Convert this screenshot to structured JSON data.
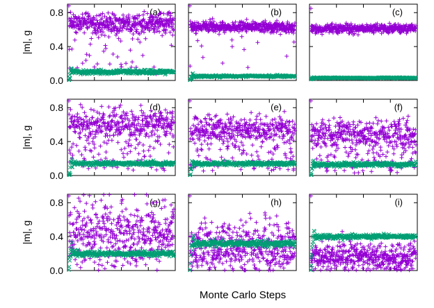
{
  "chart_data": {
    "type": "scatter",
    "xlabel": "Monte Carlo Steps",
    "ylabel": "|m|, g",
    "ylim": [
      0,
      0.9
    ],
    "yticks": [
      "0.0",
      "0.4",
      "0.8"
    ],
    "ytick_values": [
      0,
      0.4,
      0.8
    ],
    "grid": false,
    "colors": {
      "m": "#9400d3",
      "g": "#009e73"
    },
    "markers": {
      "m": "plus",
      "g": "cross"
    },
    "panels": [
      {
        "label": "(a)",
        "series": [
          {
            "key": "m",
            "mean": 0.67,
            "spread": 0.06,
            "outlier_rate": 0.14,
            "outlier_min": 0.05,
            "first": 0.88
          },
          {
            "key": "g",
            "mean": 0.1,
            "spread": 0.012,
            "first": 0.0
          }
        ]
      },
      {
        "label": "(b)",
        "series": [
          {
            "key": "m",
            "mean": 0.63,
            "spread": 0.03,
            "outlier_rate": 0.04,
            "outlier_min": 0.15,
            "first": 0.88
          },
          {
            "key": "g",
            "mean": 0.05,
            "spread": 0.006,
            "first": 0.0
          }
        ]
      },
      {
        "label": "(c)",
        "series": [
          {
            "key": "m",
            "mean": 0.61,
            "spread": 0.025,
            "outlier_rate": 0.0,
            "outlier_min": 0.5,
            "first": 0.85
          },
          {
            "key": "g",
            "mean": 0.03,
            "spread": 0.004,
            "first": 0.0
          }
        ]
      },
      {
        "label": "(d)",
        "series": [
          {
            "key": "m",
            "mean": 0.62,
            "spread": 0.08,
            "outlier_rate": 0.28,
            "outlier_min": 0.05,
            "first": 0.88
          },
          {
            "key": "g",
            "mean": 0.14,
            "spread": 0.012,
            "first": 0.0
          }
        ]
      },
      {
        "label": "(e)",
        "series": [
          {
            "key": "m",
            "mean": 0.55,
            "spread": 0.08,
            "outlier_rate": 0.3,
            "outlier_min": 0.05,
            "first": 0.88
          },
          {
            "key": "g",
            "mean": 0.14,
            "spread": 0.012,
            "first": 0.0
          }
        ]
      },
      {
        "label": "(f)",
        "series": [
          {
            "key": "m",
            "mean": 0.5,
            "spread": 0.08,
            "outlier_rate": 0.32,
            "outlier_min": 0.03,
            "first": 0.88
          },
          {
            "key": "g",
            "mean": 0.13,
            "spread": 0.012,
            "first": 0.0
          }
        ]
      },
      {
        "label": "(g)",
        "series": [
          {
            "key": "m",
            "mean": 0.5,
            "spread": 0.18,
            "outlier_rate": 0.25,
            "outlier_min": 0.03,
            "first": 0.88
          },
          {
            "key": "g",
            "mean": 0.2,
            "spread": 0.015,
            "first": 0.0
          }
        ]
      },
      {
        "label": "(h)",
        "series": [
          {
            "key": "m",
            "mean": 0.3,
            "spread": 0.15,
            "outlier_rate": 0.25,
            "outlier_min": 0.0,
            "first": 0.88
          },
          {
            "key": "g",
            "mean": 0.32,
            "spread": 0.018,
            "first": 0.0
          }
        ]
      },
      {
        "label": "(i)",
        "series": [
          {
            "key": "m",
            "mean": 0.17,
            "spread": 0.08,
            "outlier_rate": 0.1,
            "outlier_min": 0.0,
            "first": 0.88
          },
          {
            "key": "g",
            "mean": 0.4,
            "spread": 0.012,
            "first": 0.0
          }
        ]
      }
    ]
  }
}
